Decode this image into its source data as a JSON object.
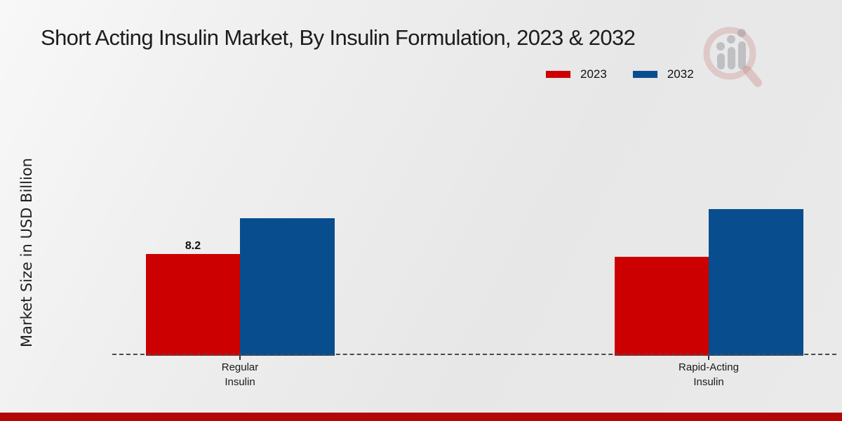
{
  "chart_data": {
    "type": "bar",
    "title": "Short Acting Insulin Market, By Insulin Formulation, 2023 & 2032",
    "ylabel": "Market Size in USD Billion",
    "xlabel": "",
    "categories": [
      "Regular Insulin",
      "Rapid-Acting Insulin"
    ],
    "category_lines": [
      {
        "line1": "Regular",
        "line2": "Insulin"
      },
      {
        "line1": "Rapid-Acting",
        "line2": "Insulin"
      }
    ],
    "series": [
      {
        "name": "2023",
        "color": "#cc0000",
        "values": [
          8.2,
          8.0
        ]
      },
      {
        "name": "2032",
        "color": "#084d8d",
        "values": [
          11.1,
          11.8
        ]
      }
    ],
    "value_labels": [
      {
        "series": "2023",
        "category": "Regular Insulin",
        "text": "8.2"
      }
    ],
    "legend_position": "upper right",
    "grid": false,
    "baseline_style": "dashed",
    "y_axis_ticks_visible": false
  },
  "colors": {
    "bar_2023": "#cc0000",
    "bar_2032": "#084d8d",
    "footer_strip": "#b30707",
    "background": "#eaeaea"
  },
  "icons": {
    "watermark_logo": "bar-chart-magnifier-logo"
  }
}
